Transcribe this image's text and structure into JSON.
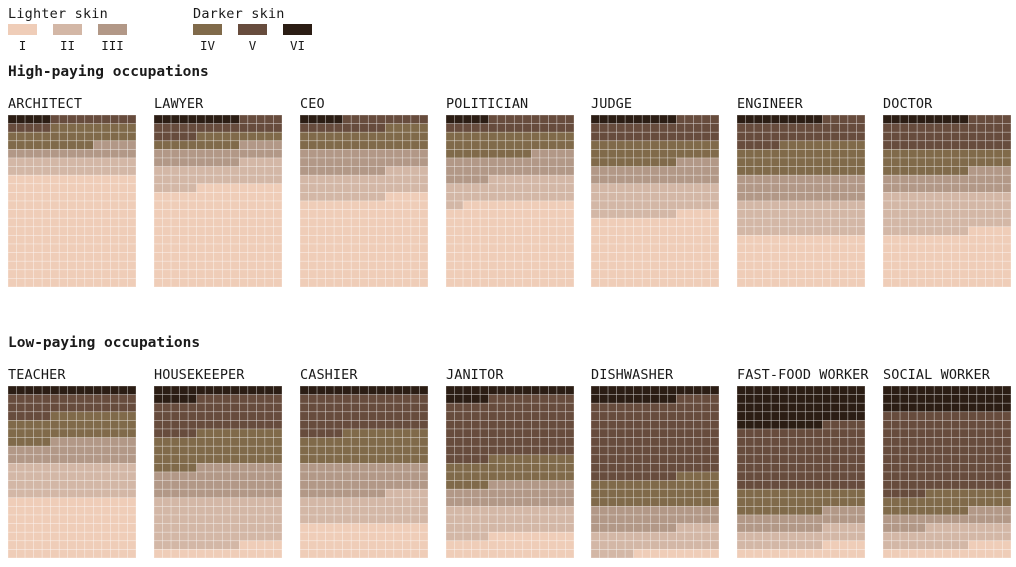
{
  "legend": {
    "lighter_label": "Lighter skin",
    "darker_label": "Darker skin",
    "types": [
      {
        "label": "I",
        "color": "#efcdb8"
      },
      {
        "label": "II",
        "color": "#d3b7a6"
      },
      {
        "label": "III",
        "color": "#b29887"
      },
      {
        "label": "IV",
        "color": "#806a4a"
      },
      {
        "label": "V",
        "color": "#674c3d"
      },
      {
        "label": "VI",
        "color": "#2b1d14"
      }
    ]
  },
  "sections": [
    {
      "title": "High-paying occupations"
    },
    {
      "title": "Low-paying occupations"
    }
  ],
  "chart_data": {
    "type": "waffle",
    "grid_columns": 15,
    "grid_rows": 20,
    "series_order": [
      "I",
      "II",
      "III",
      "IV",
      "V",
      "VI"
    ],
    "occupations": [
      {
        "name": "ARCHITECT",
        "group": "High-paying occupations",
        "counts": [
          195,
          30,
          20,
          35,
          15,
          5
        ]
      },
      {
        "name": "LAWYER",
        "group": "High-paying occupations",
        "counts": [
          175,
          40,
          30,
          20,
          25,
          10
        ]
      },
      {
        "name": "CEO",
        "group": "High-paying occupations",
        "counts": [
          155,
          45,
          40,
          35,
          20,
          5
        ]
      },
      {
        "name": "POLITICIAN",
        "group": "High-paying occupations",
        "counts": [
          148,
          42,
          40,
          40,
          25,
          5
        ]
      },
      {
        "name": "JUDGE",
        "group": "High-paying occupations",
        "counts": [
          125,
          55,
          35,
          40,
          35,
          10
        ]
      },
      {
        "name": "ENGINEER",
        "group": "High-paying occupations",
        "counts": [
          90,
          60,
          45,
          55,
          40,
          10
        ]
      },
      {
        "name": "DOCTOR",
        "group": "High-paying occupations",
        "counts": [
          95,
          70,
          35,
          40,
          50,
          10
        ]
      },
      {
        "name": "TEACHER",
        "group": "Low-paying occupations",
        "counts": [
          105,
          60,
          40,
          45,
          35,
          15
        ]
      },
      {
        "name": "HOUSEKEEPER",
        "group": "Low-paying occupations",
        "counts": [
          20,
          85,
          55,
          60,
          60,
          20
        ]
      },
      {
        "name": "CASHIER",
        "group": "Low-paying occupations",
        "counts": [
          60,
          50,
          55,
          55,
          65,
          15
        ]
      },
      {
        "name": "JANITOR",
        "group": "Low-paying occupations",
        "counts": [
          40,
          50,
          40,
          45,
          105,
          20
        ]
      },
      {
        "name": "DISHWASHER",
        "group": "Low-paying occupations",
        "counts": [
          10,
          40,
          40,
          50,
          135,
          25
        ]
      },
      {
        "name": "FAST-FOOD WORKER",
        "group": "Low-paying occupations",
        "counts": [
          20,
          30,
          30,
          40,
          110,
          70
        ]
      },
      {
        "name": "SOCIAL WORKER",
        "group": "Low-paying occupations",
        "counts": [
          20,
          35,
          25,
          35,
          140,
          45
        ]
      }
    ]
  }
}
